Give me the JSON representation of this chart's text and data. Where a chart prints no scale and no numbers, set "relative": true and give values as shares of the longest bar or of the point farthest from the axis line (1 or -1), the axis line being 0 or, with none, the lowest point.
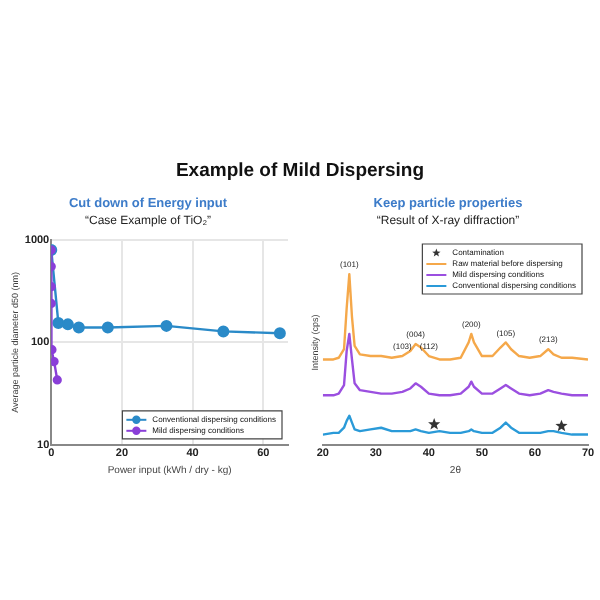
{
  "chart_data": [
    {
      "type": "line",
      "title": "Cut down of Energy input",
      "subtitle": "“Case Example of TiO₂”",
      "annotations": [
        "Example of Mild Dispersing"
      ],
      "xlabel": "Power input (kWh / dry - kg)",
      "ylabel": "Average particle diameter d50 (nm)",
      "log": "y",
      "xlim": [
        0,
        67
      ],
      "xticks": [
        0,
        20,
        40,
        60
      ],
      "ylim": [
        10,
        1000
      ],
      "yticks": [
        10,
        100,
        1000
      ],
      "grid": true,
      "legend": "bottom right",
      "marker": "circle",
      "series": [
        {
          "name": "Conventional dispersing conditions",
          "color": "#2a8ac8",
          "x": [
            0,
            2,
            4.7,
            7.8,
            16,
            32.6,
            48.7,
            64.7
          ],
          "values": [
            800,
            155,
            150,
            140,
            140,
            145,
            128,
            123
          ]
        },
        {
          "name": "Mild dispersing conditions",
          "color": "#8a3fd8",
          "x": [
            0,
            0,
            0,
            0,
            0.2,
            0.8,
            1.7
          ],
          "values": [
            800,
            550,
            350,
            240,
            85,
            65,
            43
          ]
        }
      ]
    },
    {
      "type": "line",
      "title": "Keep particle properties",
      "subtitle": "“Result of X-ray diffraction”",
      "xlabel": "2θ",
      "ylabel": "Intensity (cps)",
      "relative": true,
      "xlim": [
        20,
        70
      ],
      "xticks": [
        20,
        30,
        40,
        50,
        60,
        70
      ],
      "legend": "top right",
      "annotations": [
        {
          "text": "(101)",
          "x": 25,
          "y": 1.0
        },
        {
          "text": "(004)",
          "x": 37.5,
          "y": 0.59
        },
        {
          "text": "(103)",
          "x": 35,
          "y": 0.52
        },
        {
          "text": "(112)",
          "x": 40,
          "y": 0.52
        },
        {
          "text": "(200)",
          "x": 48,
          "y": 0.65
        },
        {
          "text": "(105)",
          "x": 54.5,
          "y": 0.6
        },
        {
          "text": "(213)",
          "x": 62.5,
          "y": 0.56
        }
      ],
      "series": [
        {
          "name": "Contamination",
          "type": "scatter",
          "marker": "star",
          "color": "#333333",
          "x": [
            41,
            65
          ],
          "values": [
            0.12,
            0.11
          ]
        },
        {
          "name": "Raw material before dispersing",
          "color": "#f5a84a",
          "x": [
            20,
            22,
            23,
            24,
            24.5,
            25,
            25.5,
            26,
            27,
            29,
            31,
            33,
            35,
            36.5,
            37.5,
            38.5,
            40,
            42,
            44,
            46,
            47.5,
            48,
            48.5,
            50,
            52,
            53.5,
            54.5,
            55.5,
            57,
            59,
            61,
            62.5,
            63.5,
            65,
            67,
            70
          ],
          "values": [
            0.5,
            0.5,
            0.51,
            0.56,
            0.8,
            1.0,
            0.75,
            0.58,
            0.53,
            0.52,
            0.52,
            0.51,
            0.52,
            0.55,
            0.59,
            0.57,
            0.52,
            0.5,
            0.5,
            0.51,
            0.6,
            0.65,
            0.6,
            0.52,
            0.52,
            0.57,
            0.6,
            0.56,
            0.52,
            0.51,
            0.52,
            0.56,
            0.53,
            0.51,
            0.51,
            0.5
          ]
        },
        {
          "name": "Mild dispersing conditions",
          "color": "#9b4fe0",
          "x": [
            20,
            22,
            23,
            24,
            24.5,
            25,
            25.5,
            26,
            27,
            29,
            31,
            33,
            35,
            36.5,
            37.5,
            38.5,
            40,
            42,
            44,
            46,
            47.5,
            48,
            48.5,
            50,
            52,
            53.5,
            54.5,
            55.5,
            57,
            59,
            61,
            62.5,
            63.5,
            65,
            67,
            70
          ],
          "values": [
            0.29,
            0.29,
            0.3,
            0.35,
            0.55,
            0.65,
            0.5,
            0.36,
            0.32,
            0.31,
            0.3,
            0.3,
            0.31,
            0.33,
            0.36,
            0.34,
            0.3,
            0.29,
            0.29,
            0.3,
            0.34,
            0.37,
            0.34,
            0.3,
            0.3,
            0.33,
            0.35,
            0.33,
            0.3,
            0.29,
            0.3,
            0.32,
            0.31,
            0.3,
            0.29,
            0.29
          ]
        },
        {
          "name": "Conventional dispersing conditions",
          "color": "#2a9ad8",
          "x": [
            20,
            22,
            23,
            24,
            24.5,
            25,
            25.5,
            26,
            27,
            29,
            31,
            33,
            35,
            36.5,
            37.5,
            38.5,
            40,
            42,
            44,
            46,
            47.5,
            48,
            48.5,
            50,
            52,
            53.5,
            54.5,
            55.5,
            57,
            59,
            61,
            62.5,
            63.5,
            65,
            67,
            70
          ],
          "values": [
            0.06,
            0.07,
            0.07,
            0.1,
            0.14,
            0.17,
            0.13,
            0.09,
            0.08,
            0.09,
            0.1,
            0.08,
            0.08,
            0.08,
            0.09,
            0.08,
            0.07,
            0.08,
            0.07,
            0.07,
            0.08,
            0.09,
            0.08,
            0.07,
            0.07,
            0.1,
            0.13,
            0.1,
            0.07,
            0.07,
            0.07,
            0.08,
            0.08,
            0.07,
            0.06,
            0.06
          ]
        }
      ]
    }
  ]
}
